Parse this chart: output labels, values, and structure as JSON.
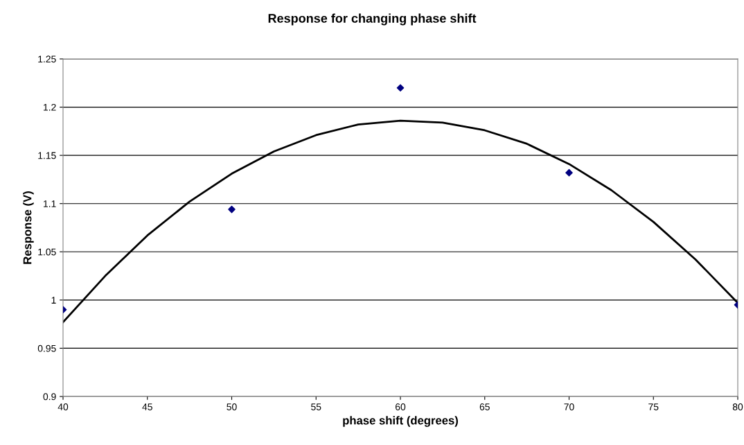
{
  "chart_data": {
    "type": "scatter",
    "title": "Response for changing phase shift",
    "xlabel": "phase shift (degrees)",
    "ylabel": "Response (V)",
    "xlim": [
      40,
      80
    ],
    "xticks": [
      40,
      45,
      50,
      55,
      60,
      65,
      70,
      75,
      80
    ],
    "ylim": [
      0.9,
      1.25
    ],
    "yticks": [
      {
        "value": 0.9,
        "label": "0.9"
      },
      {
        "value": 0.95,
        "label": "0.95"
      },
      {
        "value": 1.0,
        "label": "1"
      },
      {
        "value": 1.05,
        "label": "1.05"
      },
      {
        "value": 1.1,
        "label": "1.1"
      },
      {
        "value": 1.15,
        "label": "1.15"
      },
      {
        "value": 1.2,
        "label": "1.2"
      },
      {
        "value": 1.25,
        "label": "1.25"
      }
    ],
    "grid": "y",
    "legend": false,
    "series": [
      {
        "color": "#000080",
        "marker": "diamond",
        "x": [
          40,
          50,
          60,
          70,
          80
        ],
        "values": [
          0.99,
          1.094,
          1.22,
          1.132,
          0.995
        ]
      },
      {
        "type": "line",
        "color": "#000000",
        "marker": "none",
        "line_style": "solid",
        "x": [
          40,
          42.5,
          45,
          47.5,
          50,
          52.5,
          55,
          57.5,
          60,
          62.5,
          65,
          67.5,
          70,
          72.5,
          75,
          77.5,
          80
        ],
        "values": [
          0.977,
          1.025,
          1.067,
          1.102,
          1.131,
          1.154,
          1.171,
          1.182,
          1.186,
          1.184,
          1.176,
          1.162,
          1.141,
          1.114,
          1.081,
          1.042,
          0.997
        ]
      }
    ]
  }
}
